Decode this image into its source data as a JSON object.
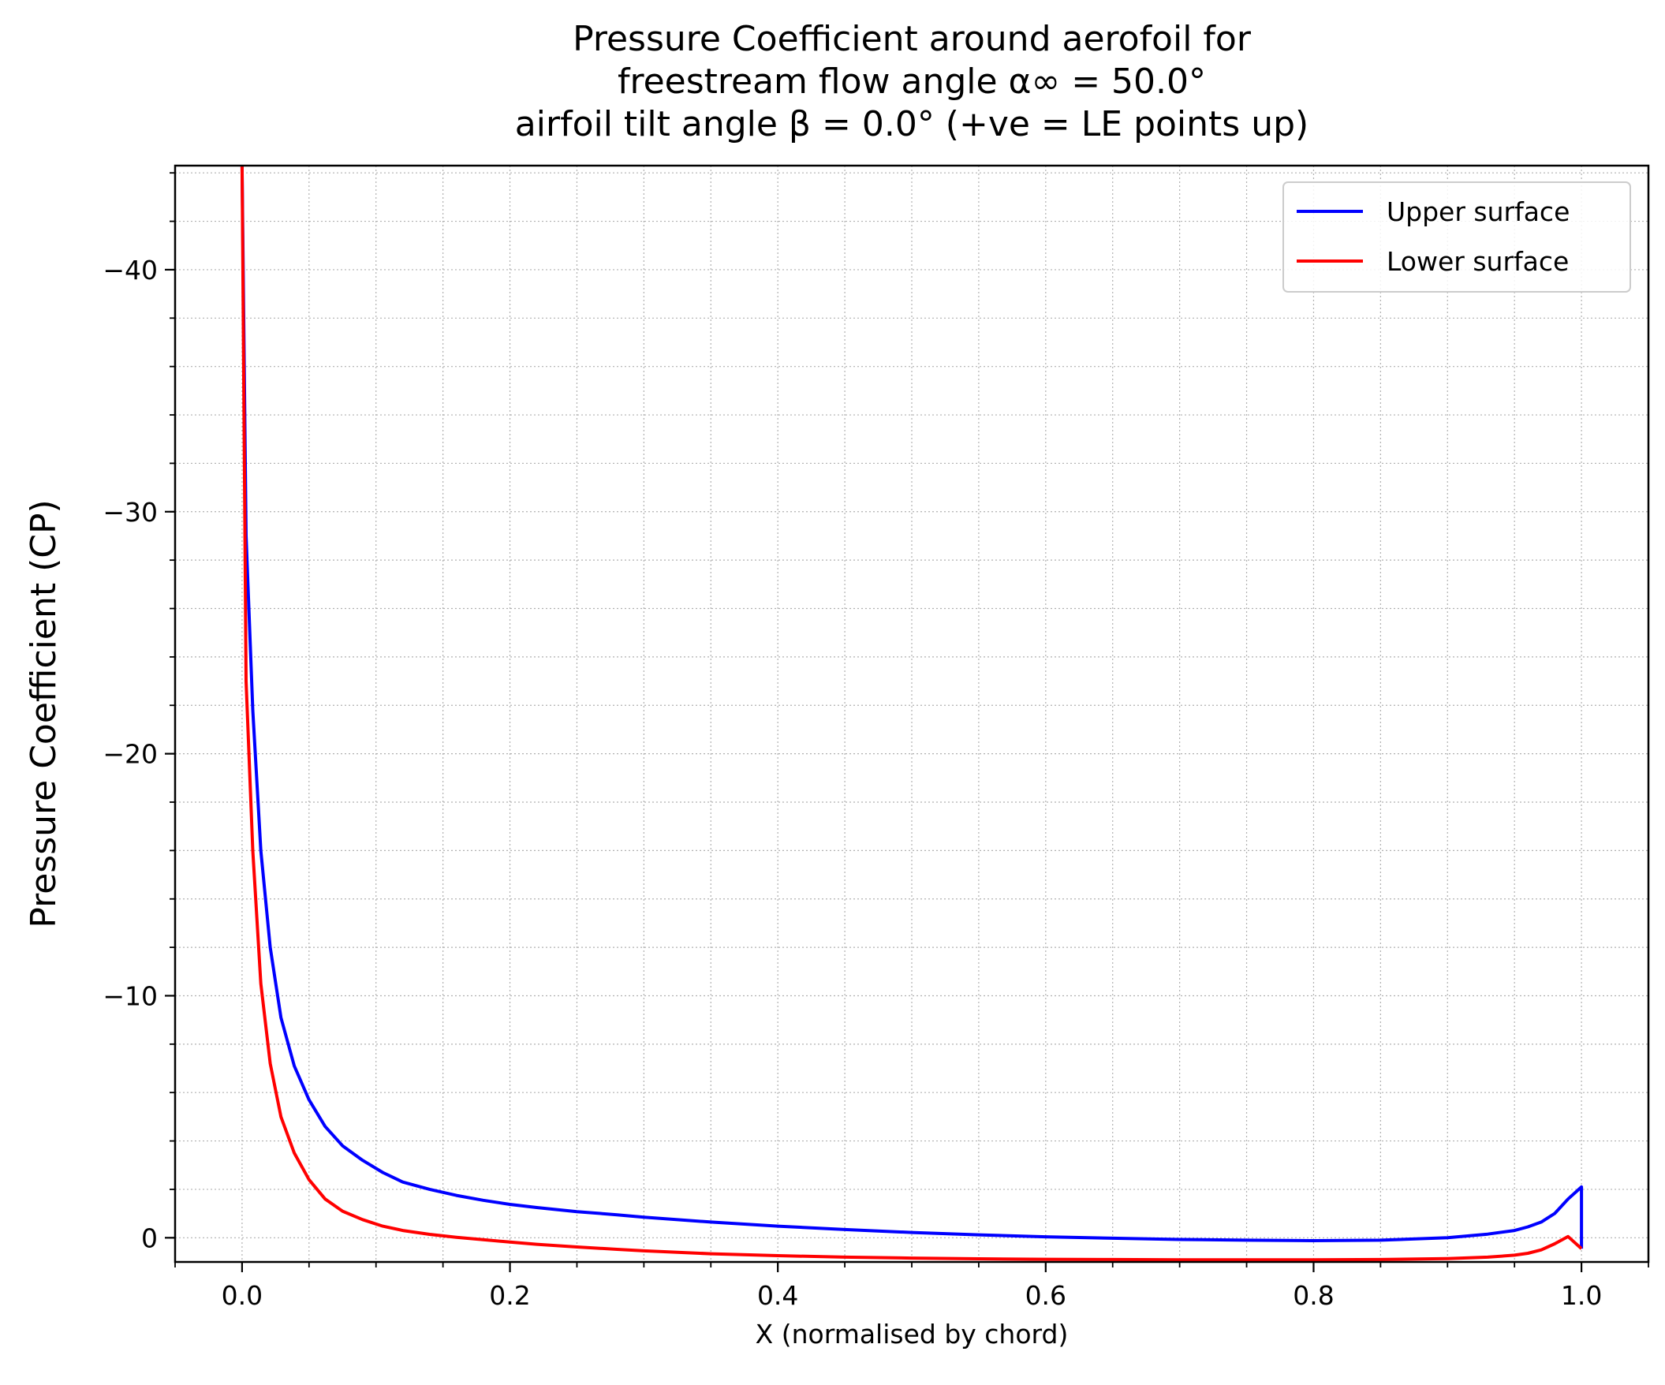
{
  "chart_data": {
    "type": "line",
    "title_lines": [
      "Pressure Coefficient around aerofoil for",
      "freestream flow angle α∞ = 50.0°",
      "airfoil tilt angle β = 0.0° (+ve = LE points up)"
    ],
    "xlabel": "X (normalised by chord)",
    "ylabel": "Pressure Coefficient (CP)",
    "xlim": [
      -0.05,
      1.05
    ],
    "ylim": [
      1.0,
      -44.3
    ],
    "y_inverted": true,
    "grid": "major and minor, dotted",
    "legend_position": "top-right",
    "x_ticks": [
      0.0,
      0.2,
      0.4,
      0.6,
      0.8,
      1.0
    ],
    "x_tick_labels": [
      "0.0",
      "0.2",
      "0.4",
      "0.6",
      "0.8",
      "1.0"
    ],
    "y_ticks": [
      -40,
      -30,
      -20,
      -10,
      0
    ],
    "y_tick_labels": [
      "−40",
      "−30",
      "−20",
      "−10",
      "0"
    ],
    "colors": {
      "upper": "#0000ff",
      "lower": "#ff0000"
    },
    "series": [
      {
        "name": "Upper surface",
        "color": "#0000ff",
        "x": [
          0.0,
          0.003,
          0.008,
          0.014,
          0.021,
          0.029,
          0.039,
          0.05,
          0.062,
          0.075,
          0.09,
          0.105,
          0.12,
          0.14,
          0.16,
          0.18,
          0.2,
          0.22,
          0.25,
          0.28,
          0.3,
          0.35,
          0.4,
          0.45,
          0.5,
          0.55,
          0.6,
          0.65,
          0.7,
          0.75,
          0.8,
          0.85,
          0.9,
          0.93,
          0.95,
          0.96,
          0.97,
          0.98,
          0.99,
          1.0,
          1.0
        ],
        "y": [
          -44.3,
          -29.0,
          -21.8,
          -16.0,
          -12.0,
          -9.1,
          -7.1,
          -5.7,
          -4.6,
          -3.8,
          -3.2,
          -2.7,
          -2.3,
          -2.0,
          -1.75,
          -1.55,
          -1.38,
          -1.25,
          -1.08,
          -0.95,
          -0.85,
          -0.65,
          -0.48,
          -0.34,
          -0.22,
          -0.12,
          -0.04,
          0.02,
          0.07,
          0.1,
          0.12,
          0.1,
          0.0,
          -0.15,
          -0.3,
          -0.45,
          -0.65,
          -1.0,
          -1.6,
          -2.1,
          0.45
        ]
      },
      {
        "name": "Lower surface",
        "color": "#ff0000",
        "x": [
          0.0,
          0.003,
          0.008,
          0.014,
          0.021,
          0.029,
          0.039,
          0.05,
          0.062,
          0.075,
          0.09,
          0.105,
          0.12,
          0.14,
          0.16,
          0.18,
          0.2,
          0.22,
          0.25,
          0.28,
          0.3,
          0.35,
          0.4,
          0.45,
          0.5,
          0.55,
          0.6,
          0.65,
          0.7,
          0.75,
          0.8,
          0.85,
          0.9,
          0.93,
          0.95,
          0.96,
          0.97,
          0.98,
          0.99,
          1.0
        ],
        "y": [
          -44.3,
          -23.0,
          -16.0,
          -10.5,
          -7.2,
          -5.0,
          -3.5,
          -2.4,
          -1.6,
          -1.1,
          -0.75,
          -0.48,
          -0.3,
          -0.14,
          -0.02,
          0.08,
          0.18,
          0.27,
          0.38,
          0.48,
          0.54,
          0.66,
          0.74,
          0.8,
          0.84,
          0.87,
          0.89,
          0.9,
          0.91,
          0.91,
          0.91,
          0.9,
          0.86,
          0.8,
          0.72,
          0.64,
          0.5,
          0.25,
          -0.05,
          0.45
        ]
      }
    ]
  }
}
